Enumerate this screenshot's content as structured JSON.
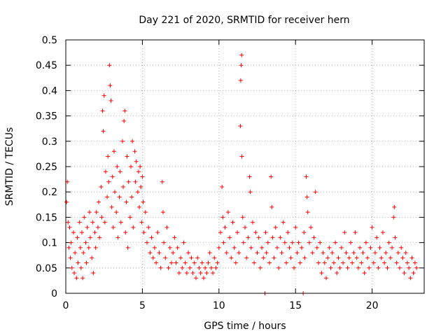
{
  "chart_data": {
    "type": "scatter",
    "title": "Day 221 of 2020, SRMTID for receiver hern",
    "xlabel": "GPS time / hours",
    "ylabel": "SRMTID / TECUs",
    "xlim": [
      0,
      23.4
    ],
    "ylim": [
      0,
      0.5
    ],
    "xticks": [
      0,
      5,
      10,
      15,
      20
    ],
    "yticks": [
      0,
      0.05,
      0.1,
      0.15,
      0.2,
      0.25,
      0.3,
      0.35,
      0.4,
      0.45,
      0.5
    ],
    "xtick_labels": [
      "0",
      "5",
      "10",
      "15",
      "20"
    ],
    "ytick_labels": [
      "0",
      "0.05",
      "0.1",
      "0.15",
      "0.2",
      "0.25",
      "0.3",
      "0.35",
      "0.4",
      "0.45",
      "0.5"
    ],
    "grid": true,
    "marker": "plus",
    "series": [
      {
        "name": "SRMTID",
        "color": "#ff0000",
        "points": [
          [
            0.05,
            0.18
          ],
          [
            0.1,
            0.22
          ],
          [
            0.15,
            0.14
          ],
          [
            0.2,
            0.09
          ],
          [
            0.25,
            0.13
          ],
          [
            0.3,
            0.07
          ],
          [
            0.35,
            0.1
          ],
          [
            0.4,
            0.05
          ],
          [
            0.5,
            0.12
          ],
          [
            0.55,
            0.04
          ],
          [
            0.6,
            0.08
          ],
          [
            0.7,
            0.03
          ],
          [
            0.75,
            0.11
          ],
          [
            0.8,
            0.06
          ],
          [
            0.9,
            0.14
          ],
          [
            0.95,
            0.09
          ],
          [
            1.0,
            0.05
          ],
          [
            1.05,
            0.12
          ],
          [
            1.1,
            0.03
          ],
          [
            1.15,
            0.08
          ],
          [
            1.2,
            0.15
          ],
          [
            1.3,
            0.1
          ],
          [
            1.35,
            0.06
          ],
          [
            1.4,
            0.13
          ],
          [
            1.5,
            0.09
          ],
          [
            1.55,
            0.16
          ],
          [
            1.6,
            0.11
          ],
          [
            1.7,
            0.07
          ],
          [
            1.75,
            0.14
          ],
          [
            1.8,
            0.04
          ],
          [
            1.9,
            0.12
          ],
          [
            1.95,
            0.09
          ],
          [
            2.0,
            0.16
          ],
          [
            2.1,
            0.13
          ],
          [
            2.15,
            0.18
          ],
          [
            2.2,
            0.11
          ],
          [
            2.3,
            0.21
          ],
          [
            2.35,
            0.15
          ],
          [
            2.4,
            0.36
          ],
          [
            2.45,
            0.32
          ],
          [
            2.5,
            0.39
          ],
          [
            2.55,
            0.14
          ],
          [
            2.6,
            0.24
          ],
          [
            2.7,
            0.19
          ],
          [
            2.75,
            0.27
          ],
          [
            2.8,
            0.22
          ],
          [
            2.85,
            0.45
          ],
          [
            2.9,
            0.41
          ],
          [
            2.95,
            0.38
          ],
          [
            3.0,
            0.17
          ],
          [
            3.05,
            0.23
          ],
          [
            3.1,
            0.13
          ],
          [
            3.15,
            0.28
          ],
          [
            3.2,
            0.2
          ],
          [
            3.3,
            0.16
          ],
          [
            3.35,
            0.25
          ],
          [
            3.4,
            0.11
          ],
          [
            3.5,
            0.19
          ],
          [
            3.55,
            0.24
          ],
          [
            3.6,
            0.14
          ],
          [
            3.7,
            0.3
          ],
          [
            3.75,
            0.21
          ],
          [
            3.8,
            0.34
          ],
          [
            3.85,
            0.36
          ],
          [
            3.9,
            0.12
          ],
          [
            3.95,
            0.18
          ],
          [
            4.0,
            0.27
          ],
          [
            4.05,
            0.09
          ],
          [
            4.1,
            0.22
          ],
          [
            4.2,
            0.15
          ],
          [
            4.25,
            0.25
          ],
          [
            4.3,
            0.19
          ],
          [
            4.35,
            0.3
          ],
          [
            4.4,
            0.13
          ],
          [
            4.5,
            0.28
          ],
          [
            4.55,
            0.22
          ],
          [
            4.6,
            0.26
          ],
          [
            4.7,
            0.2
          ],
          [
            4.75,
            0.24
          ],
          [
            4.8,
            0.17
          ],
          [
            4.85,
            0.25
          ],
          [
            4.9,
            0.21
          ],
          [
            4.95,
            0.14
          ],
          [
            5.0,
            0.23
          ],
          [
            5.05,
            0.18
          ],
          [
            5.1,
            0.12
          ],
          [
            5.2,
            0.16
          ],
          [
            5.3,
            0.1
          ],
          [
            5.4,
            0.13
          ],
          [
            5.5,
            0.08
          ],
          [
            5.6,
            0.11
          ],
          [
            5.7,
            0.07
          ],
          [
            5.8,
            0.09
          ],
          [
            5.9,
            0.06
          ],
          [
            6.0,
            0.12
          ],
          [
            6.1,
            0.08
          ],
          [
            6.2,
            0.05
          ],
          [
            6.3,
            0.22
          ],
          [
            6.35,
            0.16
          ],
          [
            6.4,
            0.1
          ],
          [
            6.5,
            0.07
          ],
          [
            6.6,
            0.13
          ],
          [
            6.7,
            0.05
          ],
          [
            6.8,
            0.09
          ],
          [
            6.9,
            0.06
          ],
          [
            7.0,
            0.08
          ],
          [
            7.1,
            0.11
          ],
          [
            7.2,
            0.06
          ],
          [
            7.3,
            0.09
          ],
          [
            7.4,
            0.04
          ],
          [
            7.5,
            0.07
          ],
          [
            7.6,
            0.05
          ],
          [
            7.7,
            0.1
          ],
          [
            7.8,
            0.06
          ],
          [
            7.9,
            0.04
          ],
          [
            8.0,
            0.08
          ],
          [
            8.1,
            0.05
          ],
          [
            8.2,
            0.07
          ],
          [
            8.3,
            0.04
          ],
          [
            8.4,
            0.06
          ],
          [
            8.5,
            0.03
          ],
          [
            8.6,
            0.07
          ],
          [
            8.7,
            0.05
          ],
          [
            8.8,
            0.04
          ],
          [
            8.9,
            0.06
          ],
          [
            9.0,
            0.03
          ],
          [
            9.1,
            0.05
          ],
          [
            9.2,
            0.04
          ],
          [
            9.3,
            0.06
          ],
          [
            9.4,
            0.08
          ],
          [
            9.5,
            0.05
          ],
          [
            9.6,
            0.04
          ],
          [
            9.7,
            0.07
          ],
          [
            9.8,
            0.05
          ],
          [
            9.9,
            0.06
          ],
          [
            10.0,
            0.09
          ],
          [
            10.1,
            0.12
          ],
          [
            10.2,
            0.21
          ],
          [
            10.25,
            0.15
          ],
          [
            10.3,
            0.1
          ],
          [
            10.4,
            0.13
          ],
          [
            10.5,
            0.08
          ],
          [
            10.6,
            0.16
          ],
          [
            10.7,
            0.11
          ],
          [
            10.8,
            0.07
          ],
          [
            10.9,
            0.14
          ],
          [
            11.0,
            0.09
          ],
          [
            11.1,
            0.06
          ],
          [
            11.2,
            0.12
          ],
          [
            11.3,
            0.08
          ],
          [
            11.4,
            0.33
          ],
          [
            11.42,
            0.42
          ],
          [
            11.45,
            0.45
          ],
          [
            11.48,
            0.47
          ],
          [
            11.5,
            0.27
          ],
          [
            11.55,
            0.15
          ],
          [
            11.6,
            0.1
          ],
          [
            11.7,
            0.13
          ],
          [
            11.8,
            0.07
          ],
          [
            11.9,
            0.11
          ],
          [
            12.0,
            0.23
          ],
          [
            12.05,
            0.2
          ],
          [
            12.1,
            0.09
          ],
          [
            12.2,
            0.14
          ],
          [
            12.3,
            0.06
          ],
          [
            12.4,
            0.12
          ],
          [
            12.5,
            0.08
          ],
          [
            12.6,
            0.11
          ],
          [
            12.7,
            0.05
          ],
          [
            12.8,
            0.09
          ],
          [
            12.9,
            0.07
          ],
          [
            13.0,
            0.0
          ],
          [
            13.05,
            0.12
          ],
          [
            13.1,
            0.08
          ],
          [
            13.2,
            0.1
          ],
          [
            13.3,
            0.06
          ],
          [
            13.4,
            0.23
          ],
          [
            13.45,
            0.17
          ],
          [
            13.5,
            0.11
          ],
          [
            13.6,
            0.07
          ],
          [
            13.7,
            0.13
          ],
          [
            13.8,
            0.09
          ],
          [
            13.9,
            0.05
          ],
          [
            14.0,
            0.11
          ],
          [
            14.1,
            0.08
          ],
          [
            14.2,
            0.14
          ],
          [
            14.3,
            0.1
          ],
          [
            14.4,
            0.06
          ],
          [
            14.5,
            0.12
          ],
          [
            14.6,
            0.09
          ],
          [
            14.7,
            0.07
          ],
          [
            14.8,
            0.1
          ],
          [
            14.9,
            0.05
          ],
          [
            15.0,
            0.13
          ],
          [
            15.1,
            0.08
          ],
          [
            15.2,
            0.1
          ],
          [
            15.3,
            0.06
          ],
          [
            15.4,
            0.09
          ],
          [
            15.5,
            0.0
          ],
          [
            15.55,
            0.12
          ],
          [
            15.6,
            0.07
          ],
          [
            15.7,
            0.23
          ],
          [
            15.75,
            0.19
          ],
          [
            15.8,
            0.16
          ],
          [
            15.9,
            0.1
          ],
          [
            16.0,
            0.13
          ],
          [
            16.1,
            0.08
          ],
          [
            16.2,
            0.11
          ],
          [
            16.3,
            0.2
          ],
          [
            16.4,
            0.09
          ],
          [
            16.5,
            0.06
          ],
          [
            16.6,
            0.1
          ],
          [
            16.7,
            0.04
          ],
          [
            16.8,
            0.08
          ],
          [
            16.9,
            0.06
          ],
          [
            17.0,
            0.03
          ],
          [
            17.1,
            0.07
          ],
          [
            17.2,
            0.09
          ],
          [
            17.3,
            0.05
          ],
          [
            17.4,
            0.08
          ],
          [
            17.5,
            0.06
          ],
          [
            17.6,
            0.1
          ],
          [
            17.7,
            0.04
          ],
          [
            17.8,
            0.07
          ],
          [
            17.9,
            0.05
          ],
          [
            18.0,
            0.09
          ],
          [
            18.1,
            0.06
          ],
          [
            18.2,
            0.12
          ],
          [
            18.3,
            0.08
          ],
          [
            18.4,
            0.05
          ],
          [
            18.5,
            0.07
          ],
          [
            18.6,
            0.1
          ],
          [
            18.7,
            0.06
          ],
          [
            18.8,
            0.08
          ],
          [
            18.9,
            0.12
          ],
          [
            19.0,
            0.07
          ],
          [
            19.1,
            0.05
          ],
          [
            19.2,
            0.09
          ],
          [
            19.3,
            0.06
          ],
          [
            19.4,
            0.08
          ],
          [
            19.5,
            0.04
          ],
          [
            19.6,
            0.1
          ],
          [
            19.7,
            0.07
          ],
          [
            19.8,
            0.05
          ],
          [
            19.9,
            0.09
          ],
          [
            20.0,
            0.13
          ],
          [
            20.1,
            0.06
          ],
          [
            20.2,
            0.08
          ],
          [
            20.3,
            0.11
          ],
          [
            20.4,
            0.05
          ],
          [
            20.5,
            0.09
          ],
          [
            20.6,
            0.07
          ],
          [
            20.7,
            0.12
          ],
          [
            20.8,
            0.06
          ],
          [
            20.9,
            0.08
          ],
          [
            21.0,
            0.05
          ],
          [
            21.1,
            0.1
          ],
          [
            21.2,
            0.07
          ],
          [
            21.3,
            0.09
          ],
          [
            21.4,
            0.15
          ],
          [
            21.45,
            0.17
          ],
          [
            21.5,
            0.11
          ],
          [
            21.6,
            0.06
          ],
          [
            21.7,
            0.08
          ],
          [
            21.8,
            0.05
          ],
          [
            21.9,
            0.09
          ],
          [
            22.0,
            0.07
          ],
          [
            22.1,
            0.04
          ],
          [
            22.2,
            0.08
          ],
          [
            22.3,
            0.06
          ],
          [
            22.4,
            0.05
          ],
          [
            22.5,
            0.03
          ],
          [
            22.6,
            0.07
          ],
          [
            22.7,
            0.04
          ],
          [
            22.8,
            0.06
          ],
          [
            22.9,
            0.05
          ]
        ]
      }
    ]
  }
}
